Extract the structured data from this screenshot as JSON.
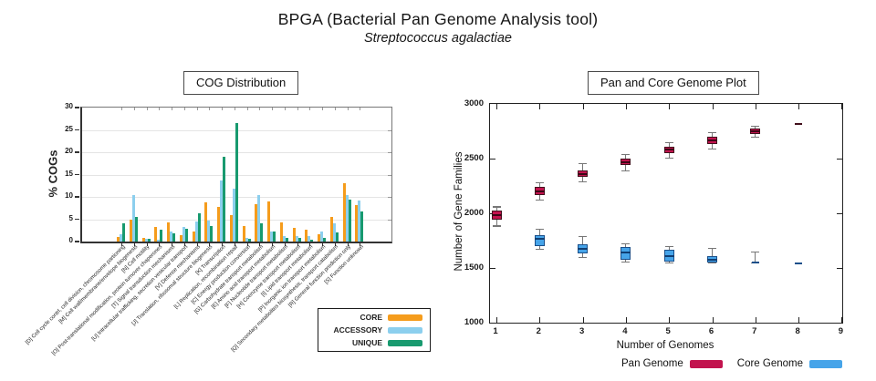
{
  "page": {
    "title": "BPGA (Bacterial Pan Genome Analysis tool)",
    "subtitle": "Streptococcus agalactiae"
  },
  "chart_data": [
    {
      "id": "cog-distribution",
      "type": "bar",
      "title": "COG Distribution",
      "ylabel": "% COGs",
      "xlabel": "",
      "ylim": [
        0,
        30
      ],
      "yticks": [
        0,
        5,
        10,
        15,
        20,
        25,
        30
      ],
      "grid": "horizontal",
      "legend_position": "bottom-right-box",
      "series": [
        {
          "name": "CORE",
          "color": "#f59c1c"
        },
        {
          "name": "ACCESSORY",
          "color": "#8ccfee"
        },
        {
          "name": "UNIQUE",
          "color": "#189a6f"
        }
      ],
      "categories": [
        "[D] Cell cycle contrl, cell division, chromosome partioning",
        "[M] Cell wall/membrane/envelope biogenesis",
        "[N] Cell motility",
        "[O] Post-translational modification, protein turnover chaperones",
        "[T] Signal transduction mechanisms",
        "[U] Intracellular trafficking, secretion vesicular transport",
        "[V] Defense mechanisms",
        "[J] Translation, ribosomal structure biogenesis",
        "[K] Transcription",
        "[L] Replication, recombination repair",
        "[C] Energy production conversion",
        "[G] Carbohydrate transport metabolism",
        "[E] Amino acid transport metabolism",
        "[F] Nucleotide transport metabolism",
        "[H] Coenzyme transport metabolism",
        "[I] Lipid transport metabolism",
        "[P] Inorganic ion transport metabolism",
        "[Q] Secondary metabolites biosynthesis, transport catabolism",
        "[R] General function prediction only",
        "[S] Function unknown"
      ],
      "values": {
        "CORE": [
          1.1,
          4.9,
          0.8,
          3.3,
          4.2,
          1.5,
          2.3,
          8.7,
          7.7,
          5.9,
          3.4,
          8.3,
          8.9,
          4.2,
          3.0,
          2.7,
          1.7,
          5.6,
          13.0,
          8.2
        ],
        "ACCESSORY": [
          1.7,
          10.4,
          0.7,
          0.5,
          2.3,
          3.3,
          4.5,
          4.6,
          13.7,
          11.8,
          0.8,
          10.4,
          2.3,
          1.3,
          1.2,
          1.2,
          2.2,
          4.0,
          10.4,
          9.2
        ],
        "UNIQUE": [
          4.1,
          5.5,
          0.6,
          2.6,
          1.9,
          2.8,
          6.3,
          3.4,
          19.0,
          26.5,
          0.7,
          4.1,
          2.2,
          0.9,
          0.9,
          0.5,
          0.8,
          2.1,
          9.4,
          6.7
        ]
      }
    },
    {
      "id": "pan-core-genome",
      "type": "boxplot",
      "title": "Pan and Core Genome Plot",
      "xlabel": "Number of Genomes",
      "ylabel": "Number of Gene Families",
      "ylim": [
        1000,
        3000
      ],
      "yticks": [
        1000,
        1500,
        2000,
        2500,
        3000
      ],
      "xticks": [
        1,
        2,
        3,
        4,
        5,
        6,
        7,
        8,
        9
      ],
      "grid": "off",
      "legend_position": "bottom-right",
      "series": [
        {
          "name": "Pan Genome",
          "color": "#c2134e",
          "border": "#42101c",
          "median_color": "#3c0716",
          "points": [
            {
              "x": 1,
              "median": 1980,
              "box": [
                1942,
                2028
              ],
              "whiskers": [
                1888,
                2062
              ]
            },
            {
              "x": 2,
              "median": 2200,
              "box": [
                2165,
                2240
              ],
              "whiskers": [
                2118,
                2283
              ]
            },
            {
              "x": 3,
              "median": 2360,
              "box": [
                2330,
                2395
              ],
              "whiskers": [
                2287,
                2452
              ]
            },
            {
              "x": 4,
              "median": 2465,
              "box": [
                2438,
                2497
              ],
              "whiskers": [
                2388,
                2540
              ]
            },
            {
              "x": 5,
              "median": 2580,
              "box": [
                2552,
                2612
              ],
              "whiskers": [
                2503,
                2648
              ]
            },
            {
              "x": 6,
              "median": 2665,
              "box": [
                2637,
                2696
              ],
              "whiskers": [
                2586,
                2738
              ]
            },
            {
              "x": 7,
              "median": 2750,
              "box": [
                2728,
                2772
              ],
              "whiskers": [
                2694,
                2794
              ]
            },
            {
              "x": 8,
              "median": 2820
            }
          ]
        },
        {
          "name": "Core Genome",
          "color": "#46a4e9",
          "border": "#1a4f8a",
          "median_color": "#103e73",
          "points": [
            {
              "x": 1,
              "median": 1980,
              "box": [
                1942,
                2028
              ],
              "whiskers": [
                1880,
                2058
              ]
            },
            {
              "x": 2,
              "median": 1765,
              "box": [
                1703,
                1797
              ],
              "whiskers": [
                1667,
                1856
              ]
            },
            {
              "x": 3,
              "median": 1678,
              "box": [
                1632,
                1714
              ],
              "whiskers": [
                1597,
                1786
              ]
            },
            {
              "x": 4,
              "median": 1642,
              "box": [
                1577,
                1693
              ],
              "whiskers": [
                1556,
                1722
              ]
            },
            {
              "x": 5,
              "median": 1612,
              "box": [
                1562,
                1668
              ],
              "whiskers": [
                1546,
                1692
              ]
            },
            {
              "x": 6,
              "median": 1577,
              "box": [
                1547,
                1606
              ],
              "whiskers": [
                1547,
                1682
              ]
            },
            {
              "x": 7,
              "median": 1546,
              "whiskers": [
                1546,
                1646
              ]
            },
            {
              "x": 8,
              "median": 1540
            }
          ]
        }
      ]
    }
  ]
}
